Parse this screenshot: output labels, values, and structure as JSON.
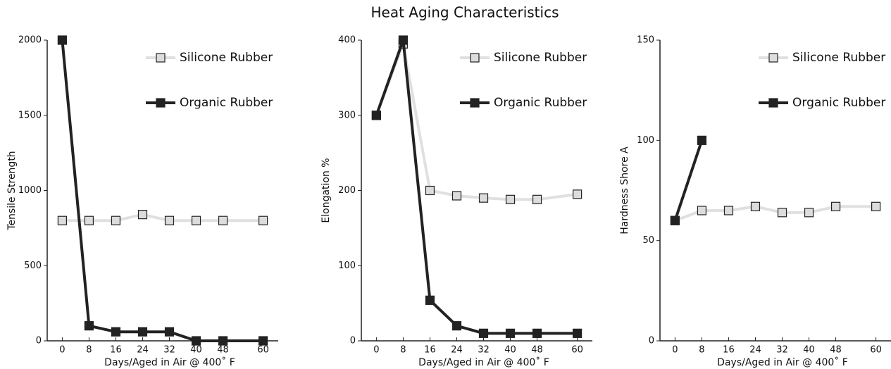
{
  "title": "Heat Aging Characteristics",
  "chart_data": [
    {
      "type": "line",
      "ylabel": "Tensile Strength",
      "xlabel": "Days/Aged in Air @ 400˚ F",
      "x": [
        0,
        8,
        16,
        24,
        32,
        40,
        48,
        60
      ],
      "xlim": [
        -4.5,
        64.5
      ],
      "xticks": [
        0,
        8,
        16,
        24,
        32,
        40,
        48,
        60
      ],
      "ylim": [
        0,
        2000
      ],
      "yticks": [
        0,
        500,
        1000,
        1500,
        2000
      ],
      "series": [
        {
          "name": "Silicone Rubber",
          "color": "#e0e0e0",
          "values": [
            800,
            800,
            800,
            840,
            800,
            800,
            800,
            800
          ]
        },
        {
          "name": "Organic Rubber",
          "color": "#222222",
          "values": [
            2000,
            100,
            60,
            60,
            60,
            0,
            0,
            0
          ]
        }
      ]
    },
    {
      "type": "line",
      "ylabel": "Elongation %",
      "xlabel": "Days/Aged in Air @ 400˚ F",
      "x": [
        0,
        8,
        16,
        24,
        32,
        40,
        48,
        60
      ],
      "xlim": [
        -4.5,
        64.5
      ],
      "xticks": [
        0,
        8,
        16,
        24,
        32,
        40,
        48,
        60
      ],
      "ylim": [
        0,
        400
      ],
      "yticks": [
        0,
        100,
        200,
        300,
        400
      ],
      "series": [
        {
          "name": "Silicone Rubber",
          "color": "#e0e0e0",
          "values": [
            300,
            395,
            200,
            193,
            190,
            188,
            188,
            195
          ]
        },
        {
          "name": "Organic Rubber",
          "color": "#222222",
          "values": [
            300,
            400,
            54,
            20,
            10,
            10,
            10,
            10
          ]
        }
      ]
    },
    {
      "type": "line",
      "ylabel": "Hardness Shore A",
      "xlabel": "Days/Aged in Air @ 400˚ F",
      "x": [
        0,
        8,
        16,
        24,
        32,
        40,
        48,
        60
      ],
      "xlim": [
        -4.5,
        64.5
      ],
      "xticks": [
        0,
        8,
        16,
        24,
        32,
        40,
        48,
        60
      ],
      "ylim": [
        0,
        150
      ],
      "yticks": [
        0,
        50,
        100,
        150
      ],
      "series": [
        {
          "name": "Silicone Rubber",
          "color": "#e0e0e0",
          "values": [
            60,
            65,
            65,
            67,
            64,
            64,
            67,
            67
          ]
        },
        {
          "name": "Organic Rubber",
          "color": "#222222",
          "values": [
            60,
            100,
            null,
            null,
            null,
            null,
            null,
            null
          ]
        }
      ]
    }
  ]
}
